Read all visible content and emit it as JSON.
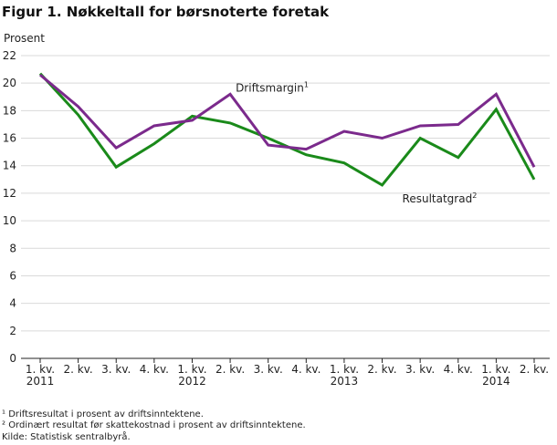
{
  "title": "Figur 1. Nøkkeltall for børsnoterte foretak",
  "chart_data": {
    "type": "line",
    "ylabel": "Prosent",
    "ylim": [
      0,
      22
    ],
    "yticks": [
      0,
      2,
      4,
      6,
      8,
      10,
      12,
      14,
      16,
      18,
      20,
      22
    ],
    "grid": true,
    "categories": [
      "1. kv.",
      "2. kv.",
      "3. kv.",
      "4. kv.",
      "1. kv.",
      "2. kv.",
      "3. kv.",
      "4. kv.",
      "1. kv.",
      "2. kv.",
      "3. kv.",
      "4. kv.",
      "1. kv.",
      "2. kv."
    ],
    "year_labels": [
      {
        "index": 0,
        "label": "2011"
      },
      {
        "index": 4,
        "label": "2012"
      },
      {
        "index": 8,
        "label": "2013"
      },
      {
        "index": 12,
        "label": "2014"
      }
    ],
    "series": [
      {
        "name": "Driftsmargin",
        "superscript": "1",
        "color": "#7b2a8c",
        "values": [
          20.6,
          18.3,
          15.3,
          16.9,
          17.3,
          19.2,
          15.5,
          15.2,
          16.5,
          16.0,
          16.9,
          17.0,
          19.2,
          13.9
        ]
      },
      {
        "name": "Resultatgrad",
        "superscript": "2",
        "color": "#1a8a1a",
        "values": [
          20.7,
          17.7,
          13.9,
          15.6,
          17.6,
          17.1,
          16.0,
          14.8,
          14.2,
          12.6,
          16.0,
          14.6,
          18.1,
          13.0
        ]
      }
    ]
  },
  "footnotes": [
    "¹ Driftsresultat i prosent av driftsinntektene.",
    "² Ordinært resultat før skattekostnad i prosent av driftsinntektene.",
    "Kilde: Statistisk sentralbyrå."
  ]
}
